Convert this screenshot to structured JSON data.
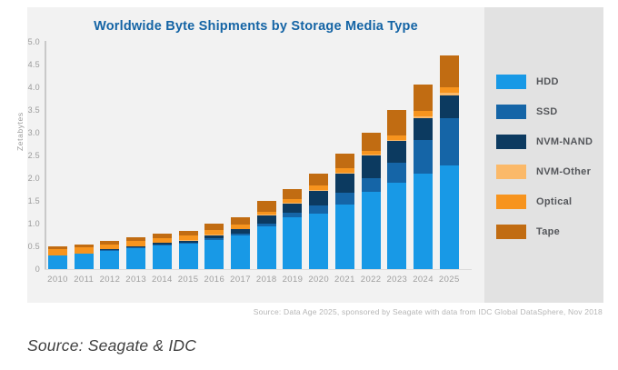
{
  "page": {
    "bottom_source": "Source: Seagate & IDC"
  },
  "chart": {
    "title": "Worldwide Byte Shipments by Storage Media Type",
    "y_axis_label": "Zetabytes",
    "y_ticks": [
      "5.0",
      "4.5",
      "4.0",
      "3.5",
      "3.0",
      "2.5",
      "2.0",
      "1.5",
      "1.0",
      "0.5",
      "0"
    ],
    "source_note": "Source: Data Age 2025, sponsored by Seagate with data from IDC Global DataSphere, Nov 2018"
  },
  "colors": {
    "title_blue": "#1464a5",
    "chart_panel_bg": "#f2f2f2",
    "legend_panel_bg": "#e2e2e2",
    "axis_text_gray": "#9b9b9b",
    "hdd": "#1899e6",
    "ssd": "#1565a7",
    "nvm_nand": "#0c3a60",
    "nvm_other": "#fbb969",
    "optical": "#f7941e",
    "tape": "#c16c12"
  },
  "legend": {
    "items": [
      {
        "label": "HDD",
        "color": "#1899e6"
      },
      {
        "label": "SSD",
        "color": "#1565a7"
      },
      {
        "label": "NVM-NAND",
        "color": "#0c3a60"
      },
      {
        "label": "NVM-Other",
        "color": "#fbb969"
      },
      {
        "label": "Optical",
        "color": "#f7941e"
      },
      {
        "label": "Tape",
        "color": "#c16c12"
      }
    ]
  },
  "chart_data": {
    "type": "bar",
    "stacked": true,
    "title": "Worldwide Byte Shipments by Storage Media Type",
    "xlabel": "",
    "ylabel": "Zetabytes",
    "ylim": [
      0,
      5.0
    ],
    "grid": false,
    "legend_position": "right",
    "categories": [
      "2010",
      "2011",
      "2012",
      "2013",
      "2014",
      "2015",
      "2016",
      "2017",
      "2018",
      "2019",
      "2020",
      "2021",
      "2022",
      "2023",
      "2024",
      "2025"
    ],
    "series": [
      {
        "name": "HDD",
        "color": "#1899e6",
        "values": [
          0.3,
          0.34,
          0.41,
          0.47,
          0.52,
          0.56,
          0.65,
          0.74,
          0.95,
          1.15,
          1.23,
          1.43,
          1.7,
          1.9,
          2.1,
          2.28
        ]
      },
      {
        "name": "SSD",
        "color": "#1565a7",
        "values": [
          0.0,
          0.0,
          0.01,
          0.01,
          0.02,
          0.02,
          0.03,
          0.04,
          0.05,
          0.1,
          0.17,
          0.25,
          0.3,
          0.45,
          0.75,
          1.05
        ]
      },
      {
        "name": "NVM-NAND",
        "color": "#0c3a60",
        "values": [
          0.01,
          0.01,
          0.02,
          0.03,
          0.04,
          0.05,
          0.07,
          0.1,
          0.18,
          0.2,
          0.32,
          0.43,
          0.5,
          0.48,
          0.48,
          0.5
        ]
      },
      {
        "name": "NVM-Other",
        "color": "#fbb969",
        "values": [
          0.0,
          0.0,
          0.0,
          0.0,
          0.0,
          0.01,
          0.01,
          0.01,
          0.02,
          0.02,
          0.02,
          0.02,
          0.02,
          0.02,
          0.03,
          0.05
        ]
      },
      {
        "name": "Optical",
        "color": "#f7941e",
        "values": [
          0.13,
          0.13,
          0.11,
          0.11,
          0.11,
          0.11,
          0.1,
          0.09,
          0.07,
          0.07,
          0.1,
          0.1,
          0.08,
          0.1,
          0.13,
          0.12
        ]
      },
      {
        "name": "Tape",
        "color": "#c16c12",
        "values": [
          0.06,
          0.07,
          0.07,
          0.08,
          0.09,
          0.1,
          0.14,
          0.17,
          0.23,
          0.23,
          0.27,
          0.32,
          0.4,
          0.55,
          0.58,
          0.7
        ]
      }
    ],
    "totals": [
      0.5,
      0.55,
      0.62,
      0.7,
      0.78,
      0.85,
      1.0,
      1.15,
      1.5,
      1.77,
      2.11,
      2.55,
      3.0,
      3.5,
      4.07,
      4.7
    ]
  }
}
